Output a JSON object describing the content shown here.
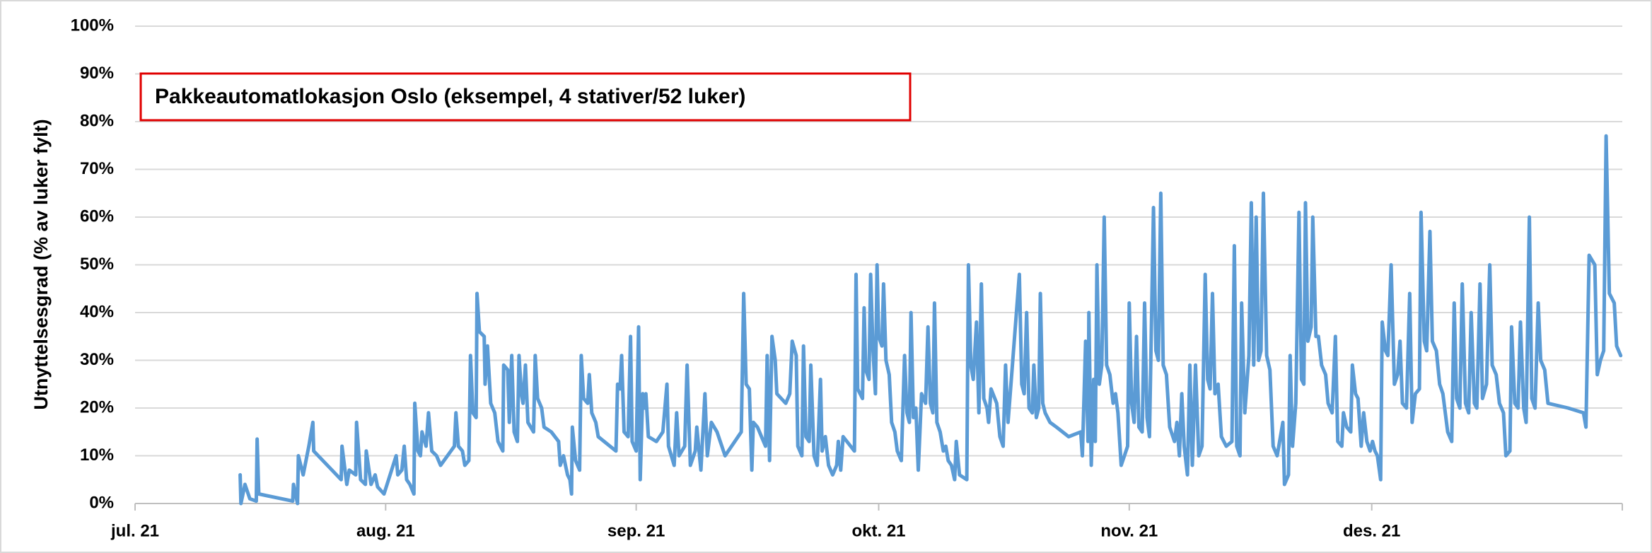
{
  "chart_data": {
    "type": "line",
    "annotation": "Pakkeautomatlokasjon Oslo (eksempel, 4 stativer/52 luker)",
    "y_label": "Utnyttelsesgrad (% av luker fylt)",
    "color": "#5b9bd5",
    "grid": true,
    "xlim": [
      0,
      184
    ],
    "xticks": [
      {
        "value": 0,
        "label": "jul. 21"
      },
      {
        "value": 31,
        "label": "aug. 21"
      },
      {
        "value": 62,
        "label": "sep. 21"
      },
      {
        "value": 92,
        "label": "okt. 21"
      },
      {
        "value": 123,
        "label": "nov. 21"
      },
      {
        "value": 153,
        "label": "des. 21"
      }
    ],
    "ylim": [
      0,
      100
    ],
    "yticks": [
      {
        "value": 0,
        "label": "0%"
      },
      {
        "value": 10,
        "label": "10%"
      },
      {
        "value": 20,
        "label": "20%"
      },
      {
        "value": 30,
        "label": "30%"
      },
      {
        "value": 40,
        "label": "40%"
      },
      {
        "value": 50,
        "label": "50%"
      },
      {
        "value": 60,
        "label": "60%"
      },
      {
        "value": 70,
        "label": "70%"
      },
      {
        "value": 80,
        "label": "80%"
      },
      {
        "value": 90,
        "label": "90%"
      },
      {
        "value": 100,
        "label": "100%"
      }
    ],
    "x": [
      13.0,
      13.1,
      13.6,
      14.2,
      15.0,
      15.1,
      15.3,
      19.5,
      19.6,
      20.1,
      20.2,
      20.8,
      21.5,
      22.0,
      22.1,
      25.5,
      25.6,
      26.2,
      26.5,
      27.3,
      27.4,
      27.9,
      28.5,
      28.6,
      29.2,
      29.7,
      30.0,
      30.8,
      32.3,
      32.5,
      33.0,
      33.3,
      33.6,
      34.0,
      34.5,
      34.6,
      35.0,
      35.3,
      35.5,
      36.0,
      36.3,
      36.7,
      37.3,
      37.8,
      39.5,
      39.7,
      40.0,
      40.5,
      40.8,
      41.3,
      41.5,
      41.8,
      42.2,
      42.3,
      42.6,
      43.2,
      43.3,
      43.6,
      44.0,
      44.5,
      44.9,
      45.5,
      45.6,
      46.1,
      46.3,
      46.6,
      46.9,
      47.3,
      47.5,
      47.8,
      48.0,
      48.3,
      48.6,
      49.3,
      49.5,
      49.8,
      50.3,
      50.6,
      51.5,
      52.4,
      52.6,
      53.0,
      53.5,
      53.8,
      54.0,
      54.1,
      54.5,
      55.0,
      55.2,
      55.5,
      56.0,
      56.2,
      56.5,
      57.0,
      57.3,
      59.5,
      59.7,
      60.0,
      60.2,
      60.5,
      61.0,
      61.3,
      61.5,
      62.0,
      62.3,
      62.5,
      62.8,
      63.0,
      63.2,
      63.5,
      64.5,
      65.3,
      65.8,
      66.0,
      66.7,
      67.0,
      67.3,
      68.0,
      68.3,
      68.7,
      69.3,
      69.5,
      70.0,
      70.5,
      70.8,
      71.3,
      72.0,
      73.0,
      75.0,
      75.3,
      75.6,
      76.0,
      76.3,
      76.5,
      77.0,
      78.0,
      78.2,
      78.5,
      78.8,
      79.2,
      79.4,
      80.5,
      81.0,
      81.3,
      81.8,
      82.0,
      82.5,
      82.7,
      83.0,
      83.4,
      83.6,
      84.0,
      84.4,
      84.8,
      85.0,
      85.4,
      85.8,
      86.3,
      86.8,
      87.0,
      87.3,
      87.6,
      89.0,
      89.2,
      89.4,
      90.0,
      90.2,
      90.4,
      90.8,
      91.0,
      91.3,
      91.6,
      91.8,
      92.0,
      92.4,
      92.6,
      92.9,
      93.3,
      93.6,
      94.0,
      94.3,
      94.8,
      95.2,
      95.5,
      95.8,
      96.0,
      96.3,
      96.6,
      96.9,
      97.3,
      97.8,
      98.1,
      98.4,
      98.7,
      98.9,
      99.2,
      99.6,
      100.0,
      100.3,
      100.6,
      101.0,
      101.4,
      101.6,
      102.0,
      102.9,
      103.1,
      103.4,
      103.7,
      104.1,
      104.4,
      104.7,
      105.0,
      105.4,
      105.6,
      105.9,
      106.6,
      107.0,
      107.4,
      107.7,
      108.0,
      109.4,
      109.7,
      110.0,
      110.3,
      110.6,
      111.0,
      111.2,
      111.5,
      111.8,
      112.0,
      112.3,
      112.6,
      113.2,
      114.0,
      115.5,
      117.0,
      117.2,
      117.6,
      117.9,
      118.0,
      118.3,
      118.6,
      118.8,
      119.0,
      119.3,
      119.6,
      119.9,
      120.2,
      120.6,
      121.0,
      121.3,
      121.6,
      122.0,
      122.4,
      122.8,
      123.0,
      123.3,
      123.6,
      123.9,
      124.2,
      124.6,
      124.9,
      125.2,
      125.5,
      126.0,
      126.3,
      126.6,
      126.9,
      127.2,
      127.6,
      128.0,
      128.6,
      128.9,
      129.2,
      129.5,
      129.8,
      130.2,
      130.5,
      130.8,
      131.2,
      131.6,
      132.0,
      132.4,
      132.7,
      133.0,
      133.3,
      133.6,
      134.0,
      134.4,
      135.0,
      135.7,
      136.0,
      136.3,
      136.7,
      136.9,
      137.3,
      137.8,
      138.1,
      138.4,
      138.7,
      139.0,
      139.3,
      139.6,
      140.0,
      140.4,
      140.8,
      141.3,
      142.0,
      142.2,
      142.7,
      142.9,
      143.2,
      143.6,
      144.0,
      144.3,
      144.6,
      144.8,
      145.1,
      145.5,
      145.7,
      146.1,
      146.4,
      146.8,
      147.3,
      147.6,
      148.1,
      148.5,
      148.8,
      149.3,
      149.5,
      149.9,
      150.4,
      150.6,
      151.0,
      151.3,
      151.7,
      152.0,
      152.4,
      152.8,
      153.1,
      153.4,
      153.7,
      154.1,
      154.3,
      154.7,
      155.0,
      155.4,
      155.8,
      156.2,
      156.5,
      156.8,
      157.3,
      157.7,
      158.0,
      158.4,
      158.9,
      159.1,
      159.5,
      159.8,
      160.2,
      160.5,
      161.0,
      161.4,
      161.8,
      162.4,
      162.9,
      163.2,
      163.5,
      163.9,
      164.2,
      164.6,
      165.0,
      165.3,
      165.7,
      166.0,
      166.4,
      166.7,
      167.2,
      167.6,
      167.9,
      168.4,
      168.8,
      169.3,
      169.6,
      170.1,
      170.3,
      170.7,
      171.1,
      171.4,
      171.8,
      172.1,
      172.5,
      172.8,
      173.2,
      173.6,
      173.9,
      174.4,
      174.8,
      177.3,
      179.2,
      179.5,
      179.9,
      180.6,
      180.9,
      181.3,
      181.7,
      182.0,
      182.4,
      183.0,
      183.3,
      183.8
    ],
    "values": [
      6,
      0,
      4,
      1,
      0.5,
      13.5,
      2,
      0.5,
      4,
      0,
      10,
      6,
      12,
      17,
      11,
      5,
      12,
      4,
      7,
      6,
      17,
      5,
      4,
      11,
      4,
      6,
      3.5,
      2,
      10,
      6,
      7,
      12,
      5,
      4,
      2,
      21,
      11,
      10,
      15,
      12,
      19,
      11,
      10,
      8,
      12,
      19,
      12,
      11,
      8,
      9,
      31,
      19,
      18,
      44,
      36,
      35,
      25,
      33,
      21,
      19,
      13,
      11,
      29,
      28,
      17,
      31,
      15,
      13,
      31,
      23,
      21,
      29,
      17,
      15,
      31,
      22,
      20,
      16,
      15,
      13,
      8,
      10,
      6,
      5,
      2,
      16,
      9,
      7,
      31,
      22,
      21,
      27,
      19,
      17,
      14,
      11,
      25,
      24,
      31,
      15,
      14,
      35,
      13,
      11,
      37,
      5,
      23,
      20,
      23,
      14,
      13,
      15,
      25,
      12,
      8,
      19,
      10,
      12,
      29,
      8,
      11,
      16,
      7,
      23,
      10,
      17,
      15,
      10,
      15,
      44,
      25,
      24,
      7,
      17,
      16,
      12,
      31,
      9,
      35,
      30,
      23,
      21,
      23,
      34,
      31,
      12,
      10,
      33,
      14,
      13,
      29,
      10,
      8,
      26,
      11,
      14,
      8,
      6,
      8,
      13,
      7,
      14,
      11,
      48,
      24,
      22,
      41,
      28,
      26,
      48,
      32,
      23,
      50,
      35,
      33,
      46,
      30,
      27,
      17,
      15,
      11,
      9,
      31,
      19,
      17,
      40,
      18,
      20,
      7,
      23,
      21,
      37,
      21,
      19,
      42,
      17,
      15,
      11,
      12,
      9,
      8,
      5,
      13,
      6,
      5,
      50,
      29,
      26,
      38,
      19,
      46,
      22,
      20,
      17,
      24,
      21,
      14,
      12,
      29,
      17,
      48,
      25,
      23,
      40,
      20,
      19,
      29,
      18,
      20,
      44,
      21,
      19,
      17,
      16,
      14,
      15,
      10,
      34,
      13,
      40,
      8,
      26,
      13,
      50,
      25,
      29,
      60,
      29,
      27,
      21,
      23,
      19,
      8,
      10,
      12,
      42,
      21,
      17,
      35,
      16,
      15,
      42,
      18,
      14,
      62,
      32,
      30,
      65,
      29,
      27,
      16,
      13,
      17,
      10,
      23,
      12,
      6,
      29,
      8,
      29,
      10,
      12,
      48,
      26,
      24,
      44,
      23,
      25,
      14,
      12,
      13,
      54,
      12,
      10,
      42,
      19,
      31,
      63,
      29,
      60,
      30,
      32,
      65,
      31,
      28,
      12,
      10,
      17,
      4,
      6,
      31,
      12,
      21,
      61,
      26,
      25,
      63,
      34,
      37,
      60,
      35,
      35,
      29,
      27,
      21,
      19,
      35,
      13,
      12,
      19,
      16,
      15,
      29,
      23,
      22,
      12,
      19,
      13,
      11,
      13,
      11,
      10,
      5,
      38,
      32,
      31,
      50,
      25,
      27,
      34,
      21,
      20,
      44,
      17,
      23,
      24,
      61,
      34,
      32,
      57,
      34,
      32,
      25,
      23,
      15,
      13,
      42,
      22,
      20,
      46,
      21,
      19,
      40,
      21,
      20,
      46,
      22,
      25,
      50,
      29,
      27,
      21,
      19,
      10,
      11,
      37,
      21,
      20,
      38,
      20,
      17,
      60,
      22,
      20,
      42,
      30,
      28,
      21,
      20,
      19,
      16,
      52,
      50,
      27,
      30,
      32,
      77,
      44,
      42,
      33,
      31
    ]
  }
}
